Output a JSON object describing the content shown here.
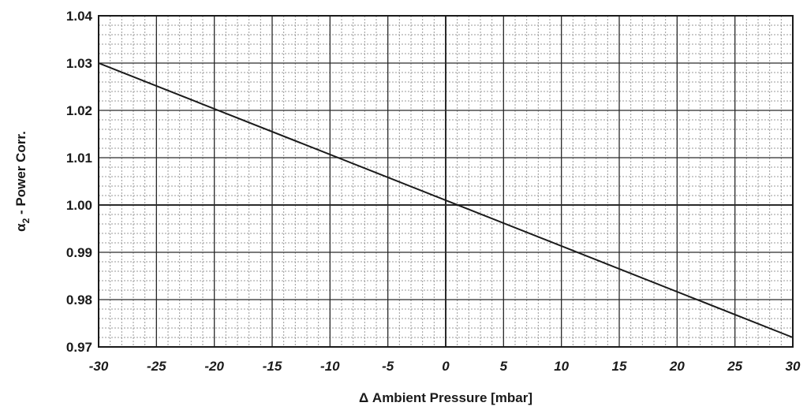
{
  "chart_data": {
    "type": "line",
    "xlabel": "Δ Ambient Pressure [mbar]",
    "ylabel": "α2 - Power Corr.",
    "ylabel_main": "α",
    "ylabel_sub": "2",
    "ylabel_rest": " - Power Corr.",
    "xlim": [
      -30,
      30
    ],
    "ylim": [
      0.97,
      1.04
    ],
    "x_ticks": [
      "-30",
      "-25",
      "-20",
      "-15",
      "-10",
      "-5",
      "0",
      "5",
      "10",
      "15",
      "20",
      "25",
      "30"
    ],
    "y_ticks": [
      "0.97",
      "0.98",
      "0.99",
      "1.00",
      "1.01",
      "1.02",
      "1.03",
      "1.04"
    ],
    "grid": true,
    "series": [
      {
        "x": [
          -30,
          30
        ],
        "y": [
          1.03,
          0.972
        ]
      }
    ],
    "colors": {
      "line": "#1a1a1a",
      "major_grid": "#2a2a2a",
      "minor_grid": "#9a9a9a"
    }
  }
}
